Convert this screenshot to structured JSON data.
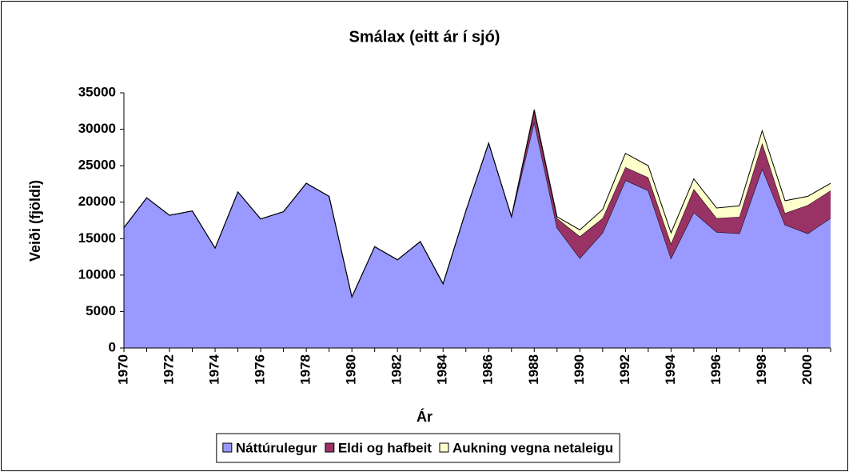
{
  "chart_data": {
    "type": "stacked_area",
    "title": "Smálax (eitt ár í sjó)",
    "x_label": "Ár",
    "y_label": "Veiði (fjöldi)",
    "x": [
      1970,
      1971,
      1972,
      1973,
      1974,
      1975,
      1976,
      1977,
      1978,
      1979,
      1980,
      1981,
      1982,
      1983,
      1984,
      1985,
      1986,
      1987,
      1988,
      1989,
      1990,
      1991,
      1992,
      1993,
      1994,
      1995,
      1996,
      1997,
      1998,
      1999,
      2000,
      2001
    ],
    "xlim": [
      1970,
      2001
    ],
    "xticks": [
      1970,
      1972,
      1974,
      1976,
      1978,
      1980,
      1982,
      1984,
      1986,
      1988,
      1990,
      1992,
      1994,
      1996,
      1998,
      2000
    ],
    "ylim": [
      0,
      35000
    ],
    "yticks": [
      0,
      5000,
      10000,
      15000,
      20000,
      25000,
      30000,
      35000
    ],
    "grid": false,
    "legend": "bottom",
    "series": [
      {
        "name": "Náttúrulegur",
        "color": "#9999ff",
        "values": [
          16500,
          20600,
          18200,
          18800,
          13700,
          21400,
          17700,
          18700,
          22600,
          20800,
          7000,
          13900,
          12100,
          14600,
          8800,
          18800,
          28100,
          18000,
          31000,
          16500,
          12300,
          15800,
          23000,
          21600,
          12300,
          18600,
          15900,
          15700,
          24600,
          16900,
          15700,
          17800
        ]
      },
      {
        "name": "Eldi og hafbeit",
        "color": "#993366",
        "values": [
          0,
          0,
          0,
          0,
          0,
          0,
          0,
          0,
          0,
          0,
          0,
          0,
          0,
          0,
          0,
          0,
          0,
          0,
          1500,
          1300,
          3000,
          2000,
          1800,
          1800,
          2000,
          3200,
          1900,
          2300,
          3500,
          1600,
          3900,
          3800
        ]
      },
      {
        "name": "Aukning vegna netaleigu",
        "color": "#ffffcc",
        "values": [
          0,
          0,
          0,
          0,
          0,
          0,
          0,
          0,
          0,
          0,
          0,
          0,
          0,
          0,
          0,
          0,
          0,
          0,
          200,
          200,
          900,
          1200,
          1900,
          1600,
          1500,
          1400,
          1400,
          1500,
          1700,
          1700,
          1200,
          1000
        ]
      }
    ]
  }
}
